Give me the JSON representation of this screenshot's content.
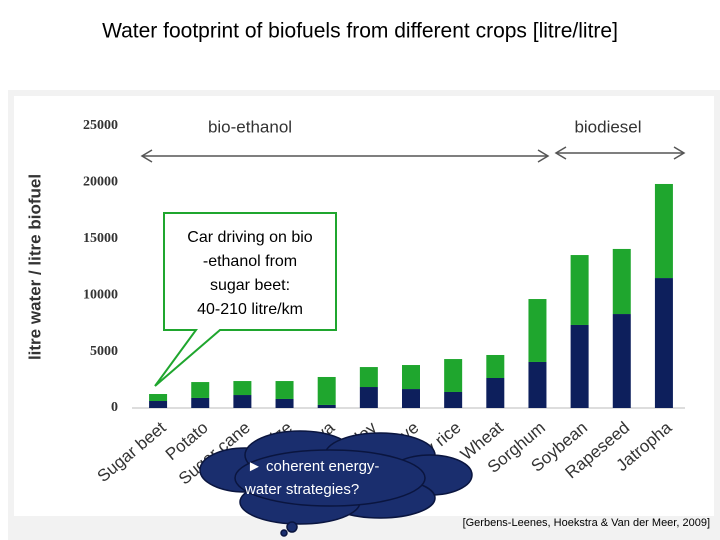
{
  "slide_title": "Water footprint of biofuels from different crops [litre/litre]",
  "chart_data": {
    "type": "bar",
    "stacked": true,
    "ylabel": "litre water / litre biofuel",
    "categories": [
      "Sugar beet",
      "Potato",
      "Sugar cane",
      "Maize",
      "Cassava",
      "Barley",
      "Rye",
      "Paddy rice",
      "Wheat",
      "Sorghum",
      "Soybean",
      "Rapeseed",
      "Jatropha"
    ],
    "series": [
      {
        "color": "#0d1f5c",
        "values": [
          620,
          890,
          1150,
          800,
          270,
          1860,
          1680,
          1420,
          2660,
          4080,
          7360,
          8330,
          11520
        ]
      },
      {
        "color": "#1fa62e",
        "values": [
          620,
          1410,
          1240,
          1590,
          2480,
          1770,
          2130,
          2920,
          2040,
          5580,
          6200,
          5770,
          8340
        ]
      }
    ],
    "ylim": [
      0,
      25000
    ],
    "yticks": [
      0,
      5000,
      10000,
      15000,
      20000,
      25000
    ],
    "grid": false,
    "group_labels": [
      "bio-ethanol",
      "biodiesel"
    ],
    "callout": [
      "Car driving on bio",
      "-ethanol from",
      "sugar beet:",
      "40-210 litre/km"
    ]
  },
  "thought_bubble": [
    "► coherent energy-",
    "water strategies?"
  ],
  "citation": "[Gerbens-Leenes, Hoekstra & Van der Meer, 2009]"
}
